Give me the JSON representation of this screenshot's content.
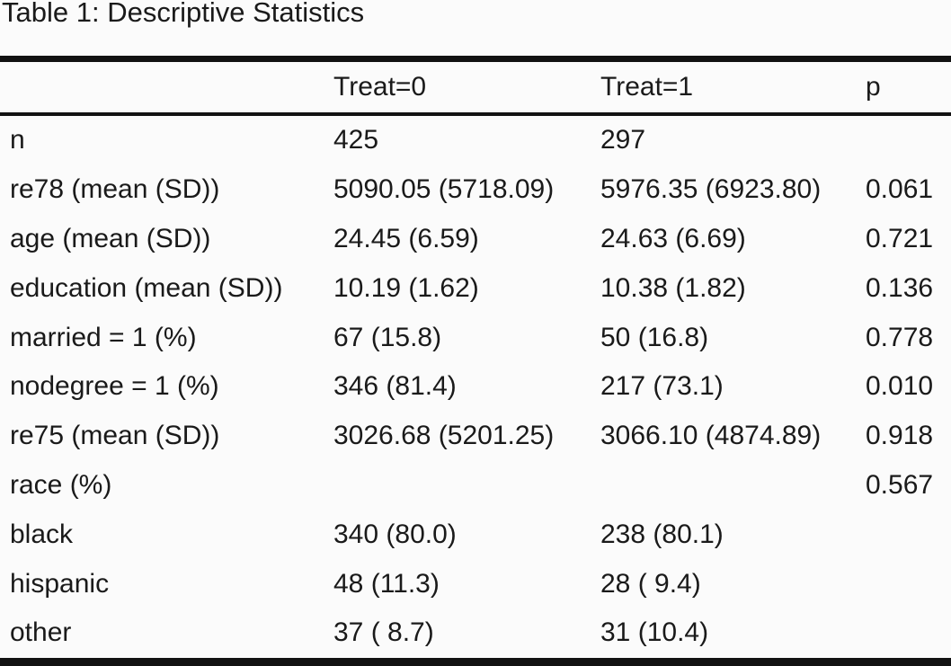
{
  "title": "Table 1: Descriptive Statistics",
  "colors": {
    "text": "#1a1a1a",
    "rule": "#121212",
    "background": "#fbfbfb"
  },
  "table": {
    "columns": [
      "",
      "Treat=0",
      "Treat=1",
      "p"
    ],
    "rows": [
      {
        "label": "n",
        "treat0": "425",
        "treat1": "297",
        "p": ""
      },
      {
        "label": "re78 (mean (SD))",
        "treat0": "5090.05 (5718.09)",
        "treat1": "5976.35 (6923.80)",
        "p": "0.061"
      },
      {
        "label": "age (mean (SD))",
        "treat0": "24.45 (6.59)",
        "treat1": "24.63 (6.69)",
        "p": "0.721"
      },
      {
        "label": "education (mean (SD))",
        "treat0": "10.19 (1.62)",
        "treat1": "10.38 (1.82)",
        "p": "0.136"
      },
      {
        "label": "married = 1 (%)",
        "treat0": "67 (15.8)",
        "treat1": "50 (16.8)",
        "p": "0.778"
      },
      {
        "label": "nodegree = 1 (%)",
        "treat0": "346 (81.4)",
        "treat1": "217 (73.1)",
        "p": "0.010"
      },
      {
        "label": "re75 (mean (SD))",
        "treat0": "3026.68 (5201.25)",
        "treat1": "3066.10 (4874.89)",
        "p": "0.918"
      },
      {
        "label": "race (%)",
        "treat0": "",
        "treat1": "",
        "p": "0.567"
      },
      {
        "label": "black",
        "treat0": "340 (80.0)",
        "treat1": "238 (80.1)",
        "p": ""
      },
      {
        "label": "hispanic",
        "treat0": "48 (11.3)",
        "treat1": "28 ( 9.4)",
        "p": ""
      },
      {
        "label": "other",
        "treat0": "37 ( 8.7)",
        "treat1": "31 (10.4)",
        "p": ""
      }
    ]
  }
}
